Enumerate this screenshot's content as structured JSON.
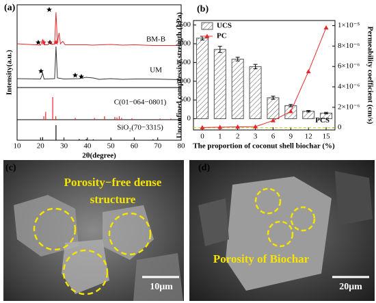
{
  "chart_data": [
    {
      "type": "xrd",
      "panel": "(a)",
      "xlabel": "2θ(degree)",
      "ylabel": "Intensity(a.u.)",
      "xlim": [
        10,
        80
      ],
      "xticks": [
        10,
        20,
        30,
        40,
        50,
        60,
        70,
        80
      ],
      "patterns": [
        {
          "name": "BM-B",
          "color": "#e8262b",
          "x": [
            10,
            15,
            20,
            20.9,
            21.5,
            23,
            24.5,
            25,
            26,
            26.6,
            27.2,
            27.9,
            28.5,
            29.5,
            30.5,
            35,
            39.5,
            42,
            50,
            55,
            60,
            68,
            80
          ],
          "values": [
            8,
            6,
            4,
            20,
            5,
            5,
            14,
            6,
            8,
            100,
            10,
            40,
            8,
            15,
            5,
            5,
            5,
            4,
            6,
            4,
            5,
            3,
            3
          ]
        },
        {
          "name": "UM",
          "color": "#333333",
          "x": [
            10,
            20,
            20.9,
            21.5,
            26,
            26.6,
            27.2,
            30,
            36.5,
            39.5,
            42.5,
            45,
            50,
            55,
            60,
            68,
            80
          ],
          "values": [
            6,
            5,
            22,
            5,
            6,
            100,
            8,
            5,
            6,
            10,
            8,
            4,
            6,
            4,
            5,
            5,
            3
          ]
        }
      ],
      "references": [
        {
          "name": "C(01−064−0801)",
          "color": "#e8262b",
          "x": [
            21.4,
            22.2,
            25.2,
            26.5,
            34.8,
            43,
            47.3,
            51.7,
            52.6,
            53.6,
            54.6,
            59,
            71,
            75.6
          ],
          "values": [
            15,
            35,
            100,
            15,
            8,
            8,
            15,
            12,
            10,
            15,
            8,
            6,
            5,
            5
          ]
        },
        {
          "name": "SiO₂(70−3315)",
          "color": "#000000",
          "x": [
            20.9,
            26.6,
            36.5,
            39.5,
            42.5,
            50.1,
            60,
            68
          ],
          "values": [
            20,
            100,
            8,
            8,
            6,
            12,
            8,
            6
          ]
        }
      ]
    },
    {
      "type": "bar",
      "panel": "(b)",
      "xlabel": "The proportion of coconut shell biochar (%)",
      "ylabel": "Unconfined compressive strength (kPa)",
      "y2label": "Permeability coefficient (cm/s)",
      "categories": [
        "0",
        "1",
        "2",
        "3",
        "6",
        "9",
        "12",
        "15"
      ],
      "ylim": [
        -300,
        2620
      ],
      "yticks": [
        0,
        500,
        1000,
        1500,
        2000,
        2500
      ],
      "y2lim": [
        -2.2e-07,
        1.05e-05
      ],
      "y2ticks": [
        0,
        {
          "value": 2e-06,
          "label": "2×10⁻⁶"
        },
        {
          "value": 4e-06,
          "label": "4×10⁻⁶"
        },
        {
          "value": 6e-06,
          "label": "6×10⁻⁶"
        },
        {
          "value": 8e-06,
          "label": "8×10⁻⁶"
        },
        {
          "value": 1e-05,
          "label": "1×10⁻⁵"
        }
      ],
      "legend": "top-left",
      "series": [
        {
          "name": "UCS",
          "color": "#555555",
          "values": [
            2150,
            1850,
            1590,
            1390,
            560,
            350,
            200,
            150
          ],
          "errors": [
            50,
            80,
            50,
            60,
            40,
            30,
            20,
            20
          ]
        },
        {
          "name": "PC",
          "color": "#e8262b",
          "axis": "y2",
          "values": [
            2e-08,
            5e-08,
            8e-08,
            1e-07,
            7e-07,
            1.6e-06,
            5.5e-06,
            9.8e-06
          ]
        }
      ],
      "reference_line": {
        "label": "PCS",
        "value": 0,
        "axis": "y2",
        "color": "#c8c800"
      }
    }
  ],
  "images": [
    {
      "panel": "(c)",
      "caption_lines": [
        "Porosity−free dense",
        "structure"
      ],
      "scale": "10μm"
    },
    {
      "panel": "(d)",
      "caption_lines": [
        "Porosity of Biochar"
      ],
      "scale": "20μm"
    }
  ]
}
